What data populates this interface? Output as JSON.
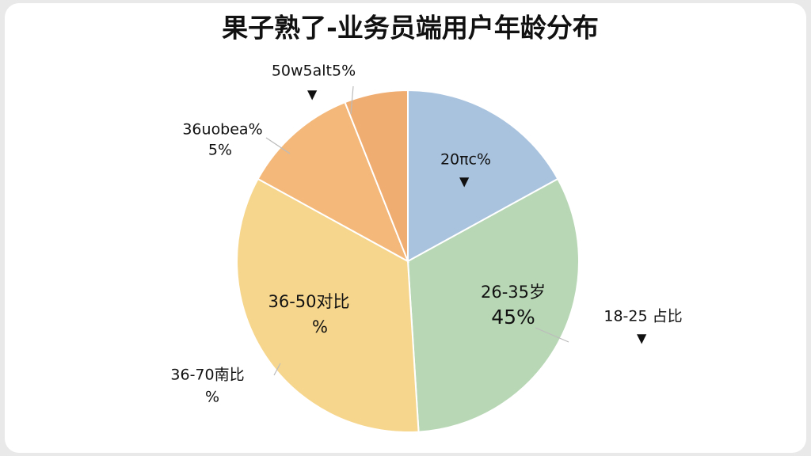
{
  "chart_data": {
    "type": "pie",
    "title": "果子熟了-业务员端用户年龄分布",
    "categories": [
      null,
      null,
      null,
      null,
      null
    ],
    "values": [
      17,
      32,
      34,
      11,
      6
    ],
    "colors": [
      "#a9c3df",
      "#b8d7b5",
      "#f6d68d",
      "#f3b87a",
      "#f0ad72"
    ],
    "annotations": [
      "50w5alt5%",
      "36uobea%",
      "5%",
      "20πc%",
      "26-35岁",
      "45%",
      "18-25 占比",
      "36-50对比",
      "%",
      "36-70南比",
      "%"
    ]
  }
}
